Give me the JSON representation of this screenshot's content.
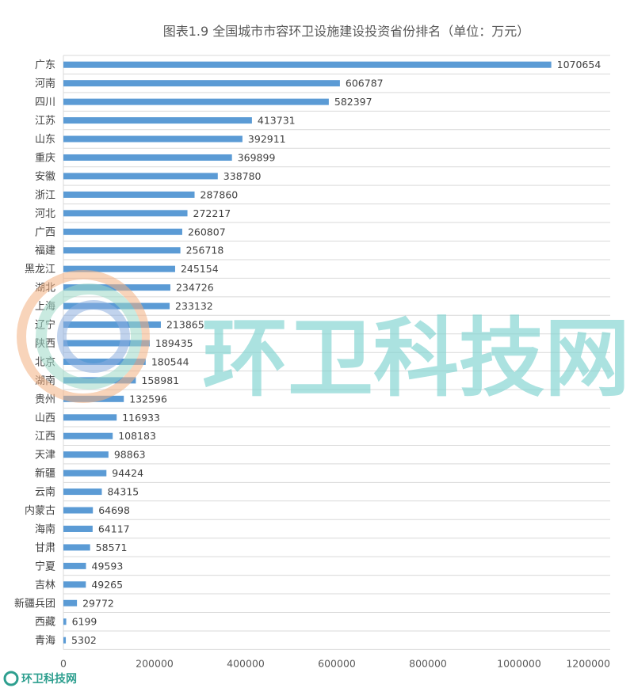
{
  "chart_data": {
    "type": "bar",
    "orientation": "horizontal",
    "title": "图表1.9 全国城市市容环卫设施建设投资省份排名（单位：万元）",
    "categories": [
      "广东",
      "河南",
      "四川",
      "江苏",
      "山东",
      "重庆",
      "安徽",
      "浙江",
      "河北",
      "广西",
      "福建",
      "黑龙江",
      "湖北",
      "上海",
      "辽宁",
      "陕西",
      "北京",
      "湖南",
      "贵州",
      "山西",
      "江西",
      "天津",
      "新疆",
      "云南",
      "内蒙古",
      "海南",
      "甘肃",
      "宁夏",
      "吉林",
      "新疆兵团",
      "西藏",
      "青海"
    ],
    "values": [
      1070654,
      606787,
      582397,
      413731,
      392911,
      369899,
      338780,
      287860,
      272217,
      260807,
      256718,
      245154,
      234726,
      233132,
      213865,
      189435,
      180544,
      158981,
      132596,
      116933,
      108183,
      98863,
      94424,
      84315,
      64698,
      64117,
      58571,
      49593,
      49265,
      29772,
      6199,
      5302
    ],
    "value_labels": [
      "1070654",
      "606787",
      "582397",
      "413731",
      "392911",
      "369899",
      "338780",
      "287860",
      "272217",
      "260807",
      "256718",
      "245154",
      "234726",
      "233132",
      "213865",
      "189435",
      "180544",
      "158981",
      "132596",
      "116933",
      "108183",
      "98863",
      "94424",
      "84315",
      "64698",
      "64117",
      "58571",
      "49593",
      "49265",
      "29772",
      "6199",
      "5302"
    ],
    "xlim": [
      0,
      1200000
    ],
    "x_ticks": [
      "0",
      "200000",
      "400000",
      "600000",
      "800000",
      "1000000",
      "1200000"
    ],
    "grid": true,
    "bar_color": "#5b9bd5"
  },
  "watermark": {
    "text": "环卫科技网",
    "logo_text": "环卫科技网"
  }
}
